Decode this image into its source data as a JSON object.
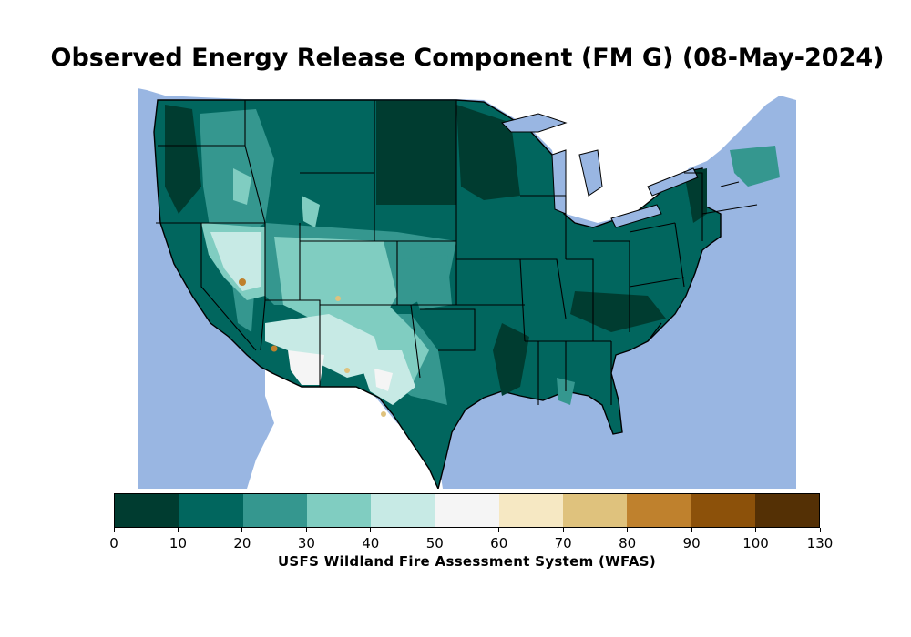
{
  "title": "Observed Energy Release Component (FM G) (08-May-2024)",
  "colorbar": {
    "label": "USFS Wildland Fire Assessment System (WFAS)",
    "ticks": [
      "0",
      "10",
      "20",
      "30",
      "40",
      "50",
      "60",
      "70",
      "80",
      "90",
      "100",
      "130"
    ],
    "colors": [
      "#003c30",
      "#01665e",
      "#35978f",
      "#80cdc1",
      "#c7eae5",
      "#f5f5f5",
      "#f6e8c3",
      "#dfc27d",
      "#bf812d",
      "#8c510a",
      "#543005"
    ]
  },
  "map": {
    "ocean_color": "#99b6e2",
    "land_outside_color": "#ffffff",
    "border_color": "#000000"
  }
}
